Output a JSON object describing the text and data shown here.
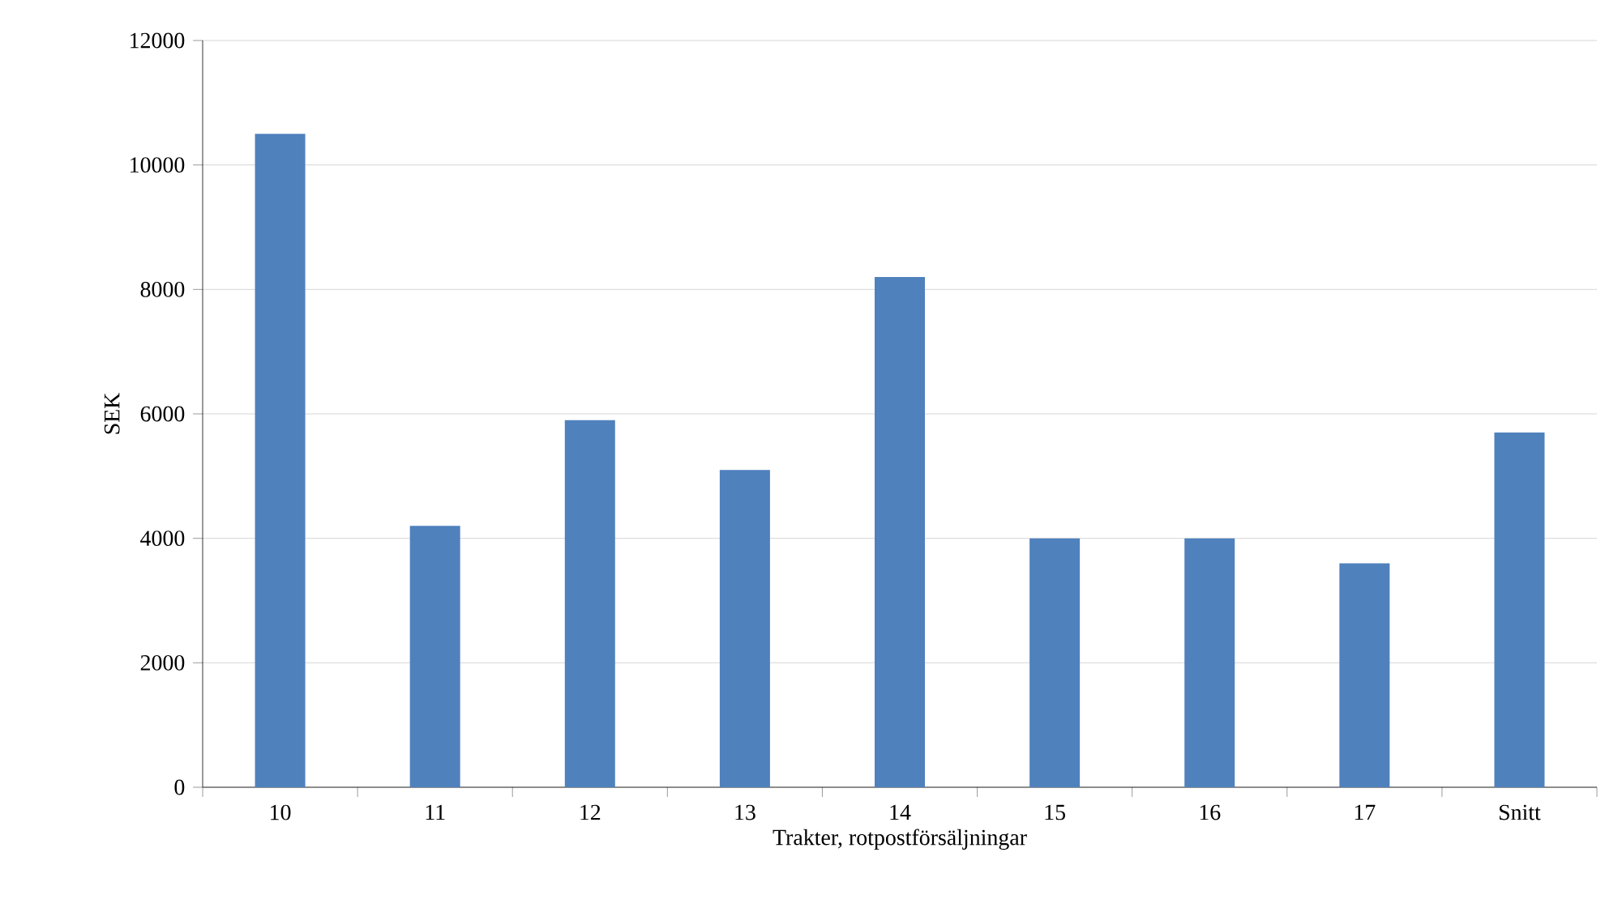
{
  "chart_data": {
    "type": "bar",
    "xlabel": "Trakter, rotpostförsäljningar",
    "ylabel": "SEK",
    "categories": [
      "10",
      "11",
      "12",
      "13",
      "14",
      "15",
      "16",
      "17",
      "Snitt"
    ],
    "values": [
      10500,
      4200,
      5900,
      5100,
      8200,
      4000,
      4000,
      3600,
      5700
    ],
    "color": "#4f81bd",
    "ylim": [
      0,
      12000
    ],
    "yticks": [
      0,
      2000,
      4000,
      6000,
      8000,
      10000,
      12000
    ],
    "grid": "y"
  }
}
